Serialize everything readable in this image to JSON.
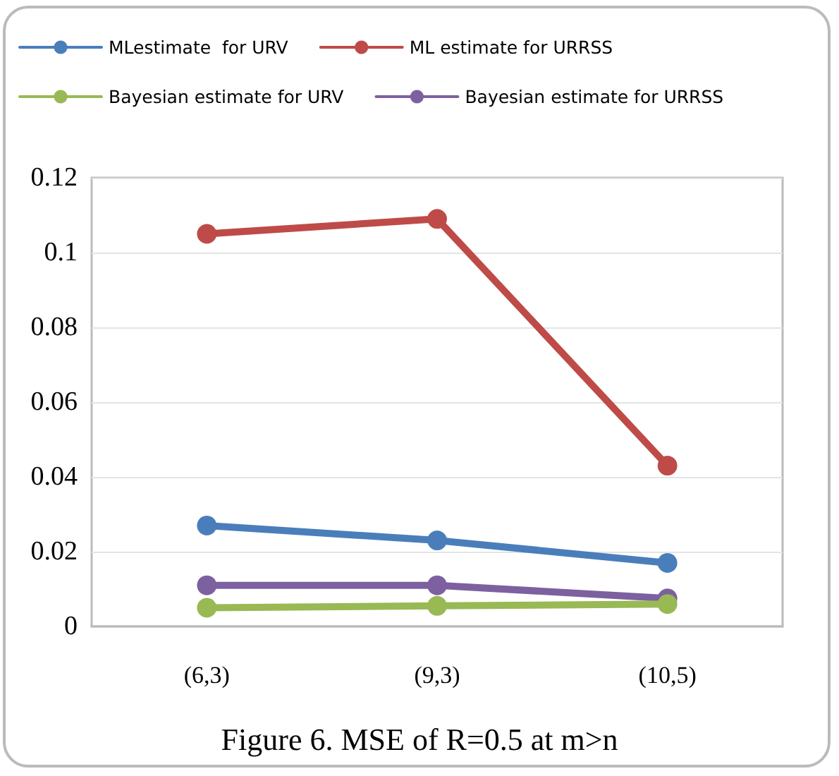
{
  "chart_data": {
    "type": "line",
    "title": "Figure 6. MSE of R=0.5 at m>n",
    "categories": [
      "(6,3)",
      "(9,3)",
      "(10,5)"
    ],
    "series": [
      {
        "name": "MLestimate  for URV",
        "color": "#4a7ebb",
        "values": [
          0.027,
          0.023,
          0.017
        ]
      },
      {
        "name": "ML estimate for URRSS",
        "color": "#be4b48",
        "values": [
          0.105,
          0.109,
          0.043
        ]
      },
      {
        "name": "Bayesian estimate for URV",
        "color": "#98b954",
        "values": [
          0.005,
          0.0055,
          0.006
        ]
      },
      {
        "name": "Bayesian estimate for URRSS",
        "color": "#7d60a0",
        "values": [
          0.011,
          0.011,
          0.0075
        ]
      }
    ],
    "ylim": [
      0,
      0.12
    ],
    "yticks": [
      0,
      0.02,
      0.04,
      0.06,
      0.08,
      0.1,
      0.12
    ],
    "grid": "y",
    "legend": "top",
    "marker": "circle",
    "line_style": "solid"
  }
}
